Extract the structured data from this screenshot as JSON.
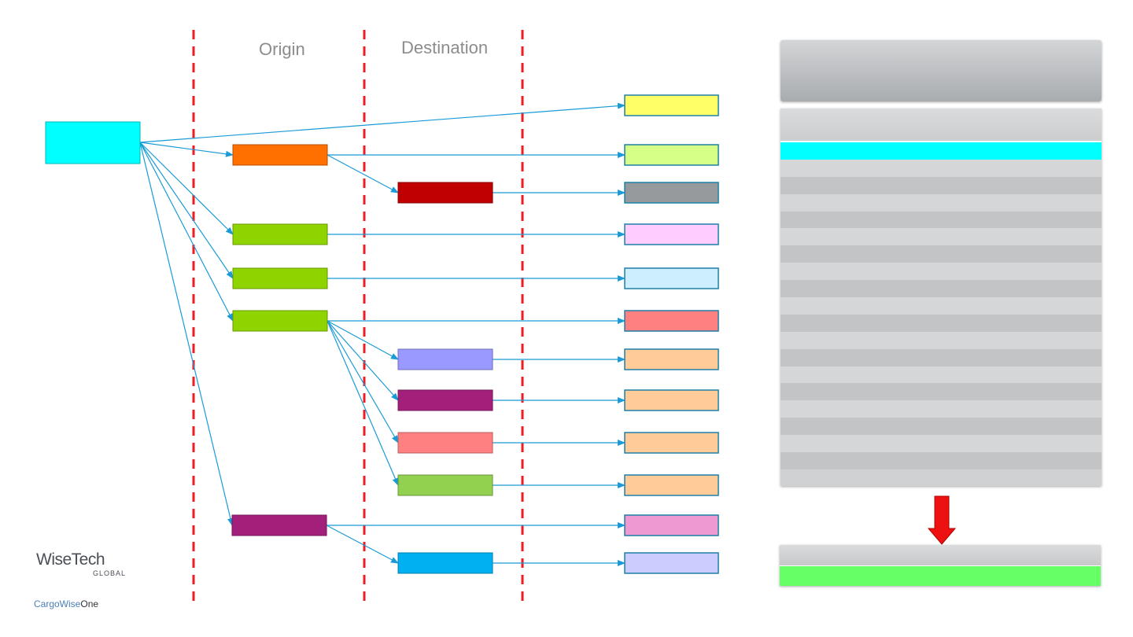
{
  "columns": {
    "origin_label": "Origin",
    "destination_label": "Destination"
  },
  "logo": {
    "wisetech": "WiseTech",
    "global": "GLOBAL",
    "cargowise": "CargoWise",
    "one": "One"
  },
  "colors": {
    "root": "#00ffff",
    "dashed_line": "#ee1c23",
    "connector": "#1a9bd7",
    "down_arrow": "#ee1111",
    "origin": [
      "#ff7000",
      "#8fd400",
      "#8fd400",
      "#8fd400",
      "#a2207a"
    ],
    "destination": [
      "#c00000",
      "#9999ff",
      "#a2207a",
      "#ff8080",
      "#92d050",
      "#00b0f0"
    ],
    "targets": [
      "#ffff66",
      "#d6ff88",
      "#969a9d",
      "#ffccff",
      "#cceeff",
      "#ff8080",
      "#ffcc99",
      "#ffcc99",
      "#ffcc99",
      "#ffcc99",
      "#ee99d2",
      "#ccccff"
    ]
  },
  "panel": {
    "list_rows": 19,
    "selected_row": 0
  }
}
